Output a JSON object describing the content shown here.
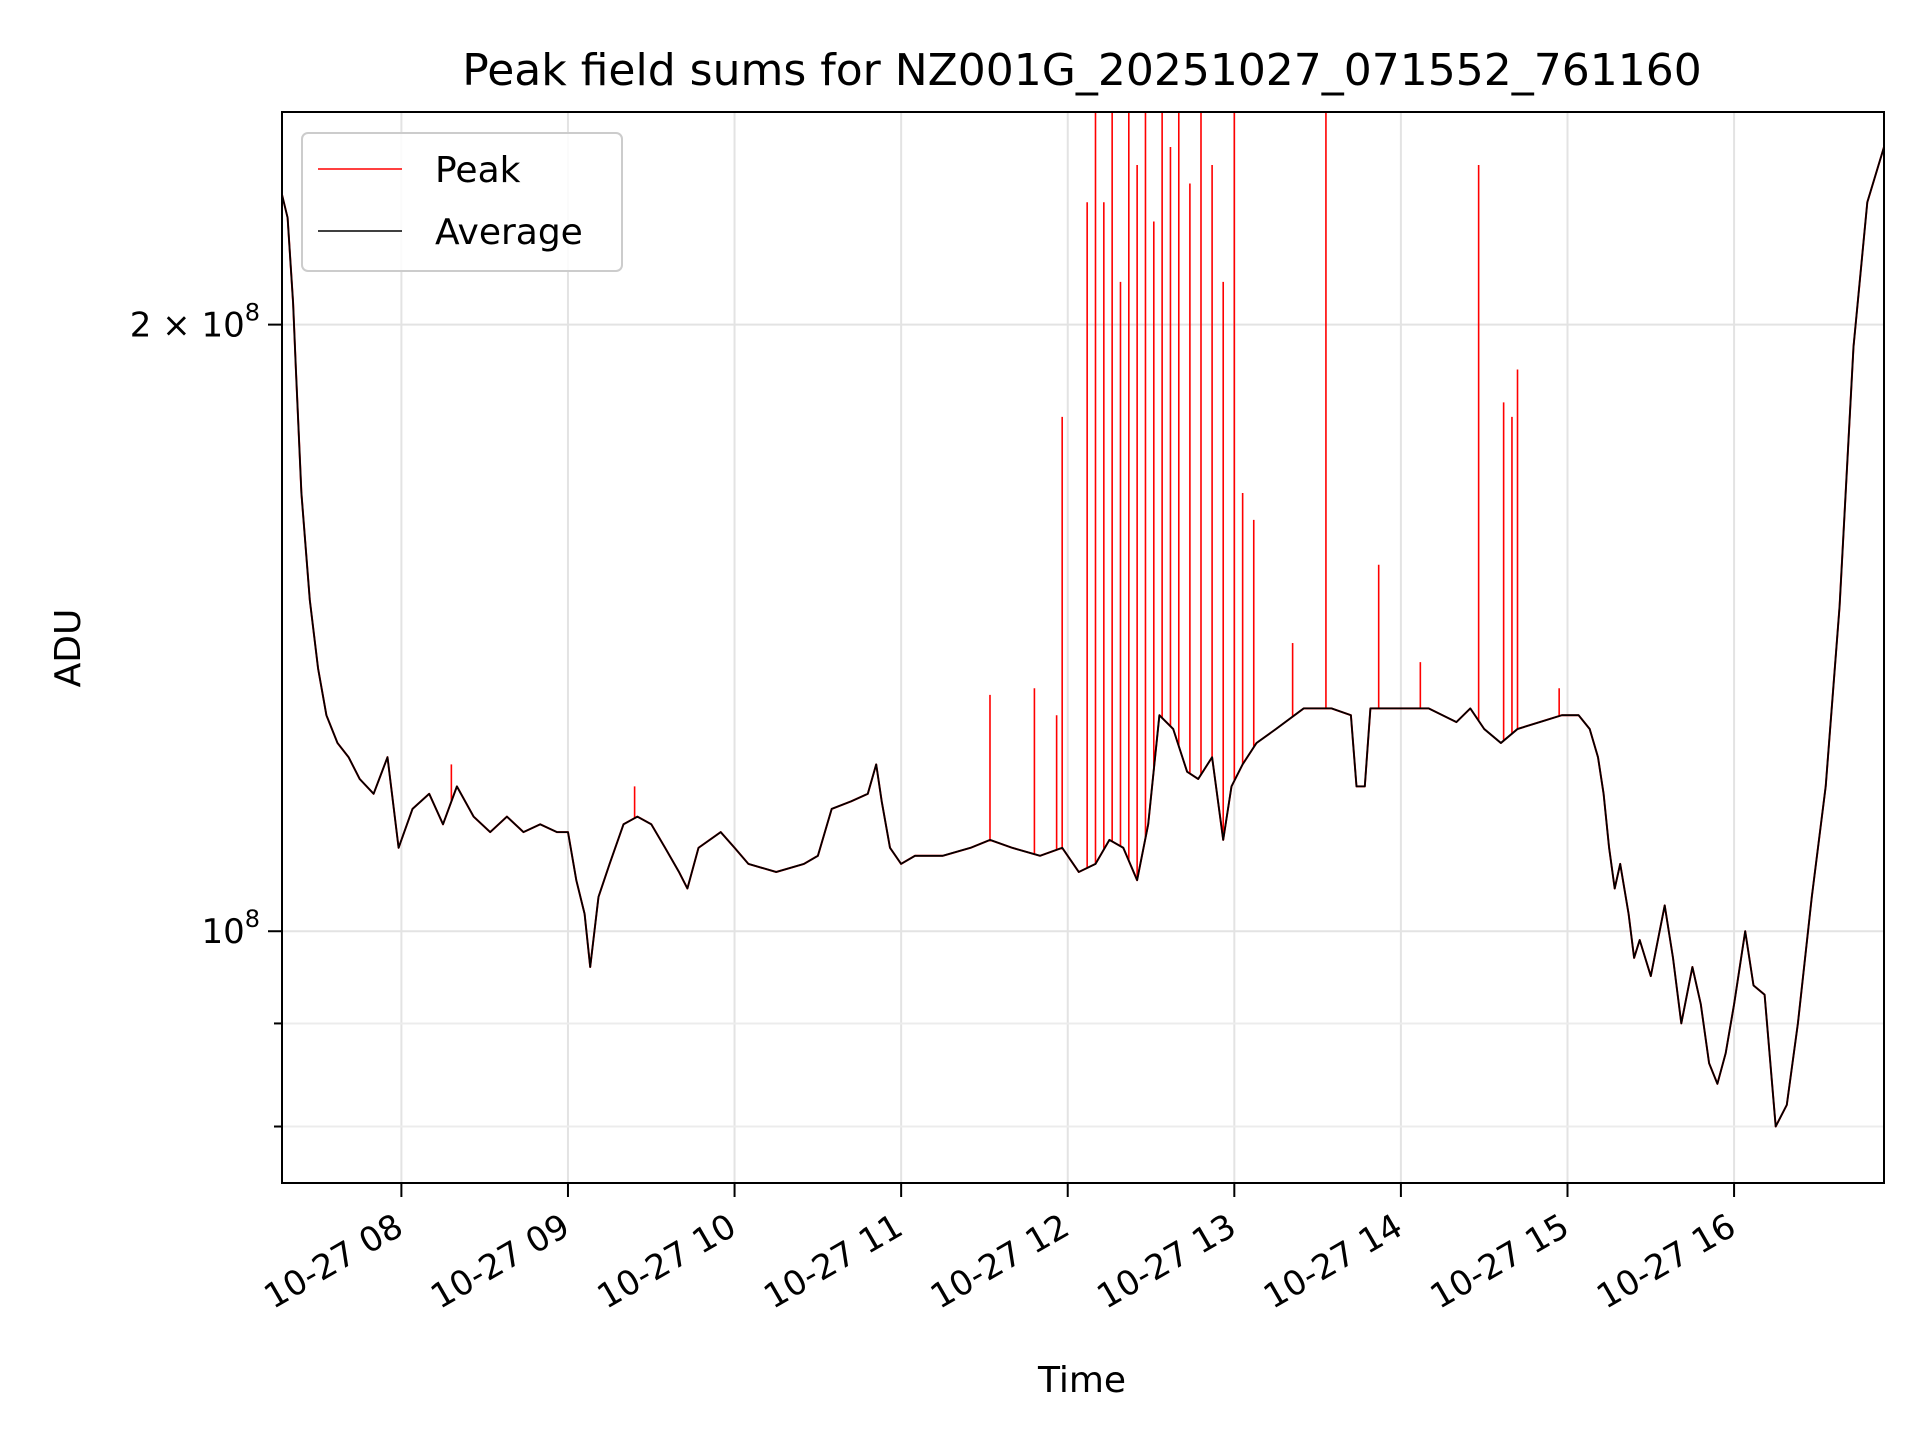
{
  "chart_data": {
    "type": "line",
    "title": "Peak field sums for NZ001G_20251027_071552_761160",
    "xlabel": "Time",
    "ylabel": "ADU",
    "yscale": "log",
    "grid": true,
    "legend_position": "top-left",
    "xlim": [
      "2025-10-27 07:17",
      "2025-10-27 16:54"
    ],
    "ylim": [
      75000000,
      255000000
    ],
    "x_ticks": [
      {
        "value": "2025-10-27 08:00",
        "label": "10-27 08"
      },
      {
        "value": "2025-10-27 09:00",
        "label": "10-27 09"
      },
      {
        "value": "2025-10-27 10:00",
        "label": "10-27 10"
      },
      {
        "value": "2025-10-27 11:00",
        "label": "10-27 11"
      },
      {
        "value": "2025-10-27 12:00",
        "label": "10-27 12"
      },
      {
        "value": "2025-10-27 13:00",
        "label": "10-27 13"
      },
      {
        "value": "2025-10-27 14:00",
        "label": "10-27 14"
      },
      {
        "value": "2025-10-27 15:00",
        "label": "10-27 15"
      },
      {
        "value": "2025-10-27 16:00",
        "label": "10-27 16"
      }
    ],
    "y_ticks": [
      {
        "value": 100000000,
        "label": "10^8"
      },
      {
        "value": 200000000,
        "label": "2 × 10^8"
      }
    ],
    "y_minor_ticks": [
      80000000,
      90000000
    ],
    "series": [
      {
        "name": "Average",
        "color": "#000000",
        "points": [
          [
            "2025-10-27 07:17",
            232000000
          ],
          [
            "2025-10-27 07:19",
            226000000
          ],
          [
            "2025-10-27 07:21",
            205000000
          ],
          [
            "2025-10-27 07:22",
            190000000
          ],
          [
            "2025-10-27 07:24",
            165000000
          ],
          [
            "2025-10-27 07:27",
            146000000
          ],
          [
            "2025-10-27 07:30",
            135000000
          ],
          [
            "2025-10-27 07:33",
            128000000
          ],
          [
            "2025-10-27 07:37",
            124000000
          ],
          [
            "2025-10-27 07:41",
            122000000
          ],
          [
            "2025-10-27 07:45",
            119000000
          ],
          [
            "2025-10-27 07:50",
            117000000
          ],
          [
            "2025-10-27 07:55",
            122000000
          ],
          [
            "2025-10-27 07:59",
            110000000
          ],
          [
            "2025-10-27 08:04",
            115000000
          ],
          [
            "2025-10-27 08:10",
            117000000
          ],
          [
            "2025-10-27 08:15",
            113000000
          ],
          [
            "2025-10-27 08:20",
            118000000
          ],
          [
            "2025-10-27 08:26",
            114000000
          ],
          [
            "2025-10-27 08:32",
            112000000
          ],
          [
            "2025-10-27 08:38",
            114000000
          ],
          [
            "2025-10-27 08:44",
            112000000
          ],
          [
            "2025-10-27 08:50",
            113000000
          ],
          [
            "2025-10-27 08:56",
            112000000
          ],
          [
            "2025-10-27 09:00",
            112000000
          ],
          [
            "2025-10-27 09:03",
            106000000
          ],
          [
            "2025-10-27 09:06",
            102000000
          ],
          [
            "2025-10-27 09:08",
            96000000
          ],
          [
            "2025-10-27 09:11",
            104000000
          ],
          [
            "2025-10-27 09:15",
            108000000
          ],
          [
            "2025-10-27 09:20",
            113000000
          ],
          [
            "2025-10-27 09:25",
            114000000
          ],
          [
            "2025-10-27 09:30",
            113000000
          ],
          [
            "2025-10-27 09:35",
            110000000
          ],
          [
            "2025-10-27 09:40",
            107000000
          ],
          [
            "2025-10-27 09:43",
            105000000
          ],
          [
            "2025-10-27 09:47",
            110000000
          ],
          [
            "2025-10-27 09:55",
            112000000
          ],
          [
            "2025-10-27 10:00",
            110000000
          ],
          [
            "2025-10-27 10:05",
            108000000
          ],
          [
            "2025-10-27 10:15",
            107000000
          ],
          [
            "2025-10-27 10:25",
            108000000
          ],
          [
            "2025-10-27 10:30",
            109000000
          ],
          [
            "2025-10-27 10:35",
            115000000
          ],
          [
            "2025-10-27 10:42",
            116000000
          ],
          [
            "2025-10-27 10:48",
            117000000
          ],
          [
            "2025-10-27 10:51",
            121000000
          ],
          [
            "2025-10-27 10:53",
            116000000
          ],
          [
            "2025-10-27 10:56",
            110000000
          ],
          [
            "2025-10-27 11:00",
            108000000
          ],
          [
            "2025-10-27 11:05",
            109000000
          ],
          [
            "2025-10-27 11:15",
            109000000
          ],
          [
            "2025-10-27 11:25",
            110000000
          ],
          [
            "2025-10-27 11:32",
            111000000
          ],
          [
            "2025-10-27 11:40",
            110000000
          ],
          [
            "2025-10-27 11:50",
            109000000
          ],
          [
            "2025-10-27 11:58",
            110000000
          ],
          [
            "2025-10-27 12:04",
            107000000
          ],
          [
            "2025-10-27 12:10",
            108000000
          ],
          [
            "2025-10-27 12:15",
            111000000
          ],
          [
            "2025-10-27 12:20",
            110000000
          ],
          [
            "2025-10-27 12:25",
            106000000
          ],
          [
            "2025-10-27 12:29",
            113000000
          ],
          [
            "2025-10-27 12:33",
            128000000
          ],
          [
            "2025-10-27 12:38",
            126000000
          ],
          [
            "2025-10-27 12:43",
            120000000
          ],
          [
            "2025-10-27 12:47",
            119000000
          ],
          [
            "2025-10-27 12:52",
            122000000
          ],
          [
            "2025-10-27 12:56",
            111000000
          ],
          [
            "2025-10-27 12:59",
            118000000
          ],
          [
            "2025-10-27 13:03",
            121000000
          ],
          [
            "2025-10-27 13:08",
            124000000
          ],
          [
            "2025-10-27 13:15",
            126000000
          ],
          [
            "2025-10-27 13:25",
            129000000
          ],
          [
            "2025-10-27 13:35",
            129000000
          ],
          [
            "2025-10-27 13:42",
            128000000
          ],
          [
            "2025-10-27 13:44",
            118000000
          ],
          [
            "2025-10-27 13:47",
            118000000
          ],
          [
            "2025-10-27 13:49",
            129000000
          ],
          [
            "2025-10-27 14:00",
            129000000
          ],
          [
            "2025-10-27 14:10",
            129000000
          ],
          [
            "2025-10-27 14:20",
            127000000
          ],
          [
            "2025-10-27 14:25",
            129000000
          ],
          [
            "2025-10-27 14:30",
            126000000
          ],
          [
            "2025-10-27 14:36",
            124000000
          ],
          [
            "2025-10-27 14:42",
            126000000
          ],
          [
            "2025-10-27 14:50",
            127000000
          ],
          [
            "2025-10-27 14:58",
            128000000
          ],
          [
            "2025-10-27 15:04",
            128000000
          ],
          [
            "2025-10-27 15:08",
            126000000
          ],
          [
            "2025-10-27 15:11",
            122000000
          ],
          [
            "2025-10-27 15:13",
            117000000
          ],
          [
            "2025-10-27 15:15",
            110000000
          ],
          [
            "2025-10-27 15:17",
            105000000
          ],
          [
            "2025-10-27 15:19",
            108000000
          ],
          [
            "2025-10-27 15:22",
            102000000
          ],
          [
            "2025-10-27 15:24",
            97000000
          ],
          [
            "2025-10-27 15:26",
            99000000
          ],
          [
            "2025-10-27 15:30",
            95000000
          ],
          [
            "2025-10-27 15:35",
            103000000
          ],
          [
            "2025-10-27 15:38",
            97000000
          ],
          [
            "2025-10-27 15:41",
            90000000
          ],
          [
            "2025-10-27 15:45",
            96000000
          ],
          [
            "2025-10-27 15:48",
            92000000
          ],
          [
            "2025-10-27 15:51",
            86000000
          ],
          [
            "2025-10-27 15:54",
            84000000
          ],
          [
            "2025-10-27 15:57",
            87000000
          ],
          [
            "2025-10-27 16:00",
            92000000
          ],
          [
            "2025-10-27 16:04",
            100000000
          ],
          [
            "2025-10-27 16:07",
            94000000
          ],
          [
            "2025-10-27 16:11",
            93000000
          ],
          [
            "2025-10-27 16:15",
            80000000
          ],
          [
            "2025-10-27 16:19",
            82000000
          ],
          [
            "2025-10-27 16:23",
            90000000
          ],
          [
            "2025-10-27 16:28",
            104000000
          ],
          [
            "2025-10-27 16:33",
            118000000
          ],
          [
            "2025-10-27 16:38",
            145000000
          ],
          [
            "2025-10-27 16:43",
            195000000
          ],
          [
            "2025-10-27 16:48",
            230000000
          ],
          [
            "2025-10-27 16:54",
            245000000
          ]
        ]
      },
      {
        "name": "Peak",
        "color": "#ff0000",
        "spikes_above_average": [
          [
            "2025-10-27 08:18",
            121000000
          ],
          [
            "2025-10-27 09:24",
            118000000
          ],
          [
            "2025-10-27 11:32",
            131000000
          ],
          [
            "2025-10-27 11:48",
            132000000
          ],
          [
            "2025-10-27 11:56",
            128000000
          ],
          [
            "2025-10-27 11:58",
            180000000
          ],
          [
            "2025-10-27 12:07",
            230000000
          ],
          [
            "2025-10-27 12:10",
            255000000
          ],
          [
            "2025-10-27 12:13",
            230000000
          ],
          [
            "2025-10-27 12:16",
            255000000
          ],
          [
            "2025-10-27 12:19",
            210000000
          ],
          [
            "2025-10-27 12:22",
            255000000
          ],
          [
            "2025-10-27 12:25",
            240000000
          ],
          [
            "2025-10-27 12:28",
            255000000
          ],
          [
            "2025-10-27 12:31",
            225000000
          ],
          [
            "2025-10-27 12:34",
            255000000
          ],
          [
            "2025-10-27 12:37",
            245000000
          ],
          [
            "2025-10-27 12:40",
            255000000
          ],
          [
            "2025-10-27 12:44",
            235000000
          ],
          [
            "2025-10-27 12:48",
            255000000
          ],
          [
            "2025-10-27 12:52",
            240000000
          ],
          [
            "2025-10-27 12:56",
            210000000
          ],
          [
            "2025-10-27 13:00",
            255000000
          ],
          [
            "2025-10-27 13:03",
            165000000
          ],
          [
            "2025-10-27 13:07",
            160000000
          ],
          [
            "2025-10-27 13:21",
            139000000
          ],
          [
            "2025-10-27 13:33",
            255000000
          ],
          [
            "2025-10-27 13:52",
            152000000
          ],
          [
            "2025-10-27 14:07",
            136000000
          ],
          [
            "2025-10-27 14:28",
            240000000
          ],
          [
            "2025-10-27 14:37",
            183000000
          ],
          [
            "2025-10-27 14:40",
            180000000
          ],
          [
            "2025-10-27 14:42",
            190000000
          ],
          [
            "2025-10-27 14:57",
            132000000
          ]
        ]
      }
    ]
  },
  "legend": {
    "peak_label": "Peak",
    "average_label": "Average"
  }
}
